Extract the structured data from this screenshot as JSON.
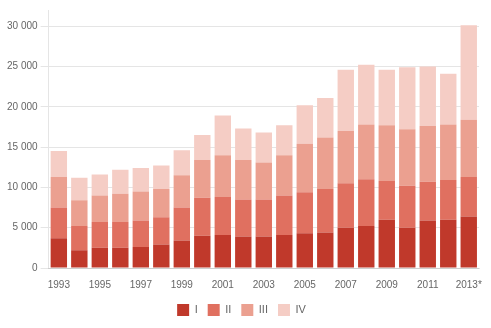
{
  "chart_data": {
    "type": "bar",
    "stacked": true,
    "categories": [
      "1993",
      null,
      "1995",
      null,
      "1997",
      null,
      "1999",
      null,
      "2001",
      null,
      "2003",
      null,
      "2005",
      null,
      "2007",
      null,
      "2009",
      null,
      "2011",
      null,
      "2013*"
    ],
    "series": [
      {
        "name": "I",
        "color": "#c0392b",
        "values": [
          3700,
          2200,
          2500,
          2500,
          2600,
          2900,
          3400,
          4000,
          4100,
          3900,
          3900,
          4100,
          4300,
          4400,
          5000,
          5200,
          6000,
          5000,
          5900,
          6000,
          6400
        ]
      },
      {
        "name": "II",
        "color": "#e07060",
        "values": [
          3800,
          3000,
          3200,
          3200,
          3300,
          3400,
          4100,
          4700,
          4700,
          4600,
          4600,
          4900,
          5100,
          5400,
          5500,
          5800,
          4800,
          5200,
          4800,
          4900,
          4900
        ]
      },
      {
        "name": "III",
        "color": "#eba090",
        "values": [
          3800,
          3200,
          3300,
          3500,
          3600,
          3500,
          4000,
          4700,
          5200,
          4900,
          4600,
          5000,
          6000,
          6400,
          6500,
          6800,
          6900,
          7000,
          6900,
          6900,
          7100
        ]
      },
      {
        "name": "IV",
        "color": "#f5cdc5",
        "values": [
          3200,
          2800,
          2600,
          3000,
          2900,
          2900,
          3100,
          3100,
          4900,
          3900,
          3700,
          3700,
          4800,
          4900,
          7600,
          7400,
          6900,
          7700,
          7400,
          6300,
          11700
        ]
      }
    ],
    "ylim": [
      0,
      32000
    ],
    "yticks": [
      0,
      {
        "value": 5000,
        "label": "5 000"
      },
      {
        "value": 10000,
        "label": "10 000"
      },
      {
        "value": 15000,
        "label": "15 000"
      },
      {
        "value": 20000,
        "label": "20 000"
      },
      {
        "value": 25000,
        "label": "25 000"
      },
      {
        "value": 30000,
        "label": "30 000"
      }
    ],
    "grid": true,
    "legend": "bottom"
  }
}
